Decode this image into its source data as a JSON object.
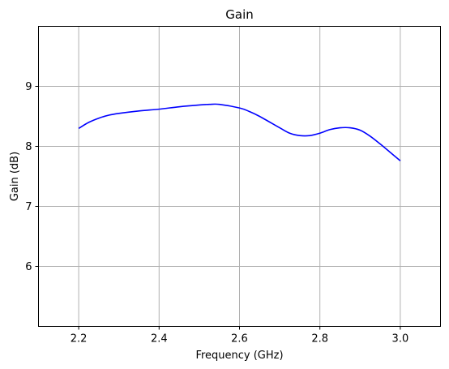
{
  "chart_data": {
    "type": "line",
    "title": "Gain",
    "xlabel": "Frequency (GHz)",
    "ylabel": "Gain (dB)",
    "xlim": [
      2.1,
      3.1
    ],
    "ylim": [
      5.0,
      10.0
    ],
    "grid": true,
    "xticks": [
      2.2,
      2.4,
      2.6,
      2.8,
      3.0
    ],
    "xtick_labels": [
      "2.2",
      "2.4",
      "2.6",
      "2.8",
      "3.0"
    ],
    "yticks": [
      6,
      7,
      8,
      9
    ],
    "ytick_labels": [
      "6",
      "7",
      "8",
      "9"
    ],
    "series": [
      {
        "color": "#0000ff",
        "x": [
          2.2,
          2.225,
          2.25,
          2.275,
          2.3,
          2.35,
          2.4,
          2.45,
          2.5,
          2.525,
          2.55,
          2.6,
          2.625,
          2.65,
          2.7,
          2.725,
          2.75,
          2.775,
          2.8,
          2.825,
          2.85,
          2.875,
          2.9,
          2.925,
          2.95,
          2.975,
          3.0
        ],
        "y": [
          8.3,
          8.4,
          8.47,
          8.52,
          8.55,
          8.59,
          8.62,
          8.66,
          8.69,
          8.7,
          8.7,
          8.64,
          8.58,
          8.5,
          8.31,
          8.22,
          8.18,
          8.18,
          8.22,
          8.28,
          8.31,
          8.31,
          8.27,
          8.17,
          8.04,
          7.9,
          7.76
        ]
      }
    ]
  }
}
